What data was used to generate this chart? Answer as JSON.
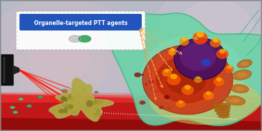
{
  "label_text": "Organelle-targeted PTT agents",
  "label_bg": "#2255bb",
  "label_text_color": "#ffffff",
  "fig_width": 3.77,
  "fig_height": 1.89,
  "dpi": 100,
  "bg_top": "#c8c8d8",
  "bg_bottom": "#a8a0b0",
  "cell_color": "#60d4a8",
  "vessel_top_color": "#cc2020",
  "vessel_mid_color": "#aa1515",
  "box_border_color": "#aaaaaa",
  "laser_color": "#ff2200",
  "tumor_color": "#b8b050",
  "nucleus_color": "#4a1060"
}
